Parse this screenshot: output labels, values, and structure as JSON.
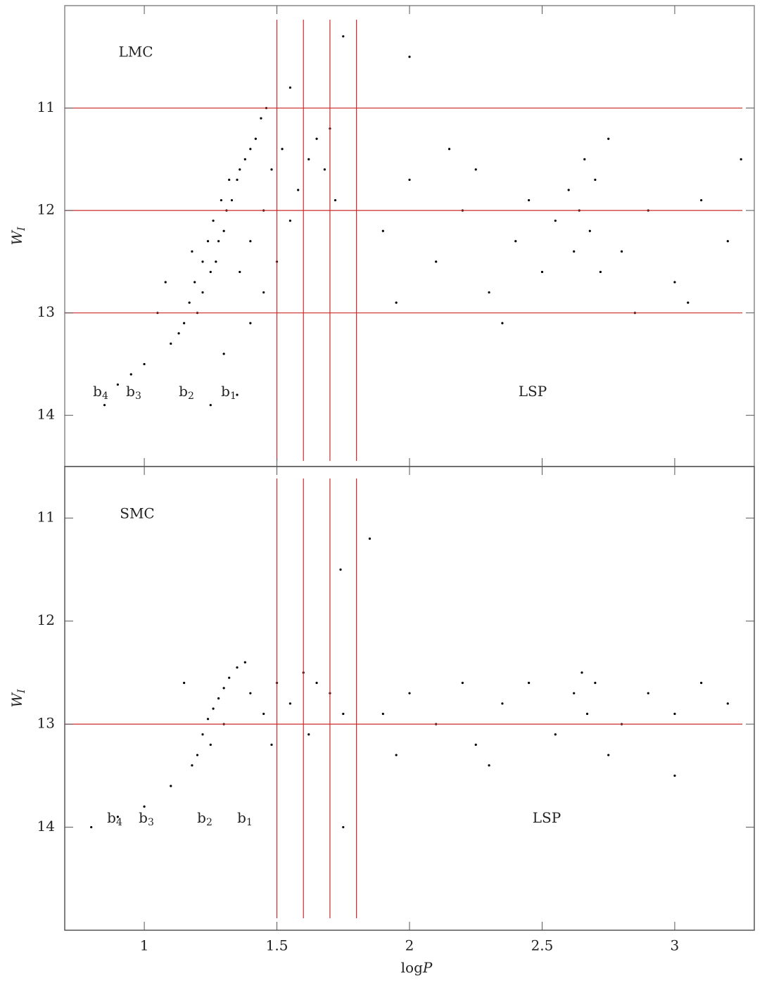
{
  "chart_data": [
    {
      "type": "scatter",
      "panel_label": "LMC",
      "ylabel": [
        "W",
        "I"
      ],
      "labels": [
        {
          "text": "b",
          "sub": "4"
        },
        {
          "text": "b",
          "sub": "3"
        },
        {
          "text": "b",
          "sub": "2"
        },
        {
          "text": "b",
          "sub": "1"
        },
        {
          "text": "LSP"
        }
      ],
      "color": "#000000",
      "line_color": "#cc2a2a",
      "x": [
        1.2,
        1.22,
        1.25,
        1.27,
        1.28,
        1.3,
        1.31,
        1.33,
        1.35,
        1.36,
        1.38,
        1.4,
        1.42,
        1.44,
        1.46,
        1.15,
        1.17,
        1.19,
        1.22,
        1.24,
        1.26,
        1.29,
        1.32,
        1.13,
        1.1,
        1.05,
        1.0,
        0.95,
        0.9,
        0.85,
        1.08,
        1.18,
        1.36,
        1.4,
        1.45,
        1.48,
        1.52,
        1.55,
        1.58,
        1.62,
        1.65,
        1.68,
        1.7,
        1.72,
        1.5,
        1.45,
        1.4,
        1.3,
        1.35,
        1.25,
        1.9,
        2.0,
        2.1,
        2.2,
        2.25,
        2.3,
        2.4,
        2.45,
        2.5,
        2.55,
        2.6,
        2.62,
        2.64,
        2.66,
        2.68,
        2.7,
        2.72,
        2.75,
        2.8,
        2.9,
        3.0,
        3.1,
        3.2,
        3.25,
        2.35,
        2.85,
        1.95,
        2.15,
        3.05,
        1.55,
        2.0,
        1.75
      ],
      "values": [
        13.0,
        12.8,
        12.6,
        12.5,
        12.3,
        12.2,
        12.0,
        11.9,
        11.7,
        11.6,
        11.5,
        11.4,
        11.3,
        11.1,
        11.0,
        13.1,
        12.9,
        12.7,
        12.5,
        12.3,
        12.1,
        11.9,
        11.7,
        13.2,
        13.3,
        13.0,
        13.5,
        13.6,
        13.7,
        13.9,
        12.7,
        12.4,
        12.6,
        12.3,
        12.0,
        11.6,
        11.4,
        12.1,
        11.8,
        11.5,
        11.3,
        11.6,
        11.2,
        11.9,
        12.5,
        12.8,
        13.1,
        13.4,
        13.8,
        13.9,
        12.2,
        11.7,
        12.5,
        12.0,
        11.6,
        12.8,
        12.3,
        11.9,
        12.6,
        12.1,
        11.8,
        12.4,
        12.0,
        11.5,
        12.2,
        11.7,
        12.6,
        11.3,
        12.4,
        12.0,
        12.7,
        11.9,
        12.3,
        11.5,
        13.1,
        13.0,
        12.9,
        11.4,
        12.9,
        10.8,
        10.5,
        10.3
      ],
      "xlim": [
        0.7,
        3.3
      ],
      "ylim": [
        14.5,
        10
      ],
      "xticks": [
        1,
        1.5,
        2,
        2.5,
        3
      ],
      "yticks": [
        11,
        12,
        13,
        14
      ],
      "xticklabels": false,
      "vlines": [
        1.5,
        1.6,
        1.7,
        1.8
      ],
      "hlines": [
        11,
        12,
        13
      ]
    },
    {
      "type": "scatter",
      "panel_label": "SMC",
      "ylabel": [
        "W",
        "I"
      ],
      "xlabel": [
        "log",
        "P"
      ],
      "labels": [
        {
          "text": "b",
          "sub": "4"
        },
        {
          "text": "b",
          "sub": "3"
        },
        {
          "text": "b",
          "sub": "2"
        },
        {
          "text": "b",
          "sub": "1"
        },
        {
          "text": "LSP"
        }
      ],
      "color": "#000000",
      "line_color": "#cc2a2a",
      "x": [
        1.22,
        1.24,
        1.26,
        1.28,
        1.3,
        1.32,
        1.35,
        1.38,
        1.2,
        1.18,
        1.25,
        1.3,
        1.4,
        1.45,
        1.5,
        1.55,
        1.6,
        1.65,
        1.7,
        1.75,
        1.62,
        1.48,
        1.1,
        1.0,
        0.9,
        0.8,
        1.15,
        1.74,
        1.75,
        1.9,
        2.0,
        2.1,
        2.2,
        2.25,
        2.35,
        2.45,
        2.55,
        2.62,
        2.65,
        2.67,
        2.7,
        2.8,
        2.9,
        3.0,
        3.1,
        3.2,
        2.3,
        2.75,
        1.85,
        1.95,
        3.0
      ],
      "values": [
        13.1,
        12.95,
        12.85,
        12.75,
        12.65,
        12.55,
        12.45,
        12.4,
        13.3,
        13.4,
        13.2,
        13.0,
        12.7,
        12.9,
        12.6,
        12.8,
        12.5,
        12.6,
        12.7,
        12.9,
        13.1,
        13.2,
        13.6,
        13.8,
        13.9,
        14.0,
        12.6,
        11.5,
        14.0,
        12.9,
        12.7,
        13.0,
        12.6,
        13.2,
        12.8,
        12.6,
        13.1,
        12.7,
        12.5,
        12.9,
        12.6,
        13.0,
        12.7,
        12.9,
        12.6,
        12.8,
        13.4,
        13.3,
        11.2,
        13.3,
        13.5
      ],
      "xlim": [
        0.7,
        3.3
      ],
      "ylim": [
        15,
        10.5
      ],
      "xticks": [
        1,
        1.5,
        2,
        2.5,
        3
      ],
      "yticks": [
        11,
        12,
        13,
        14
      ],
      "xticklabels": true,
      "vlines": [
        1.5,
        1.6,
        1.7,
        1.8
      ],
      "hlines": [
        13
      ]
    }
  ]
}
